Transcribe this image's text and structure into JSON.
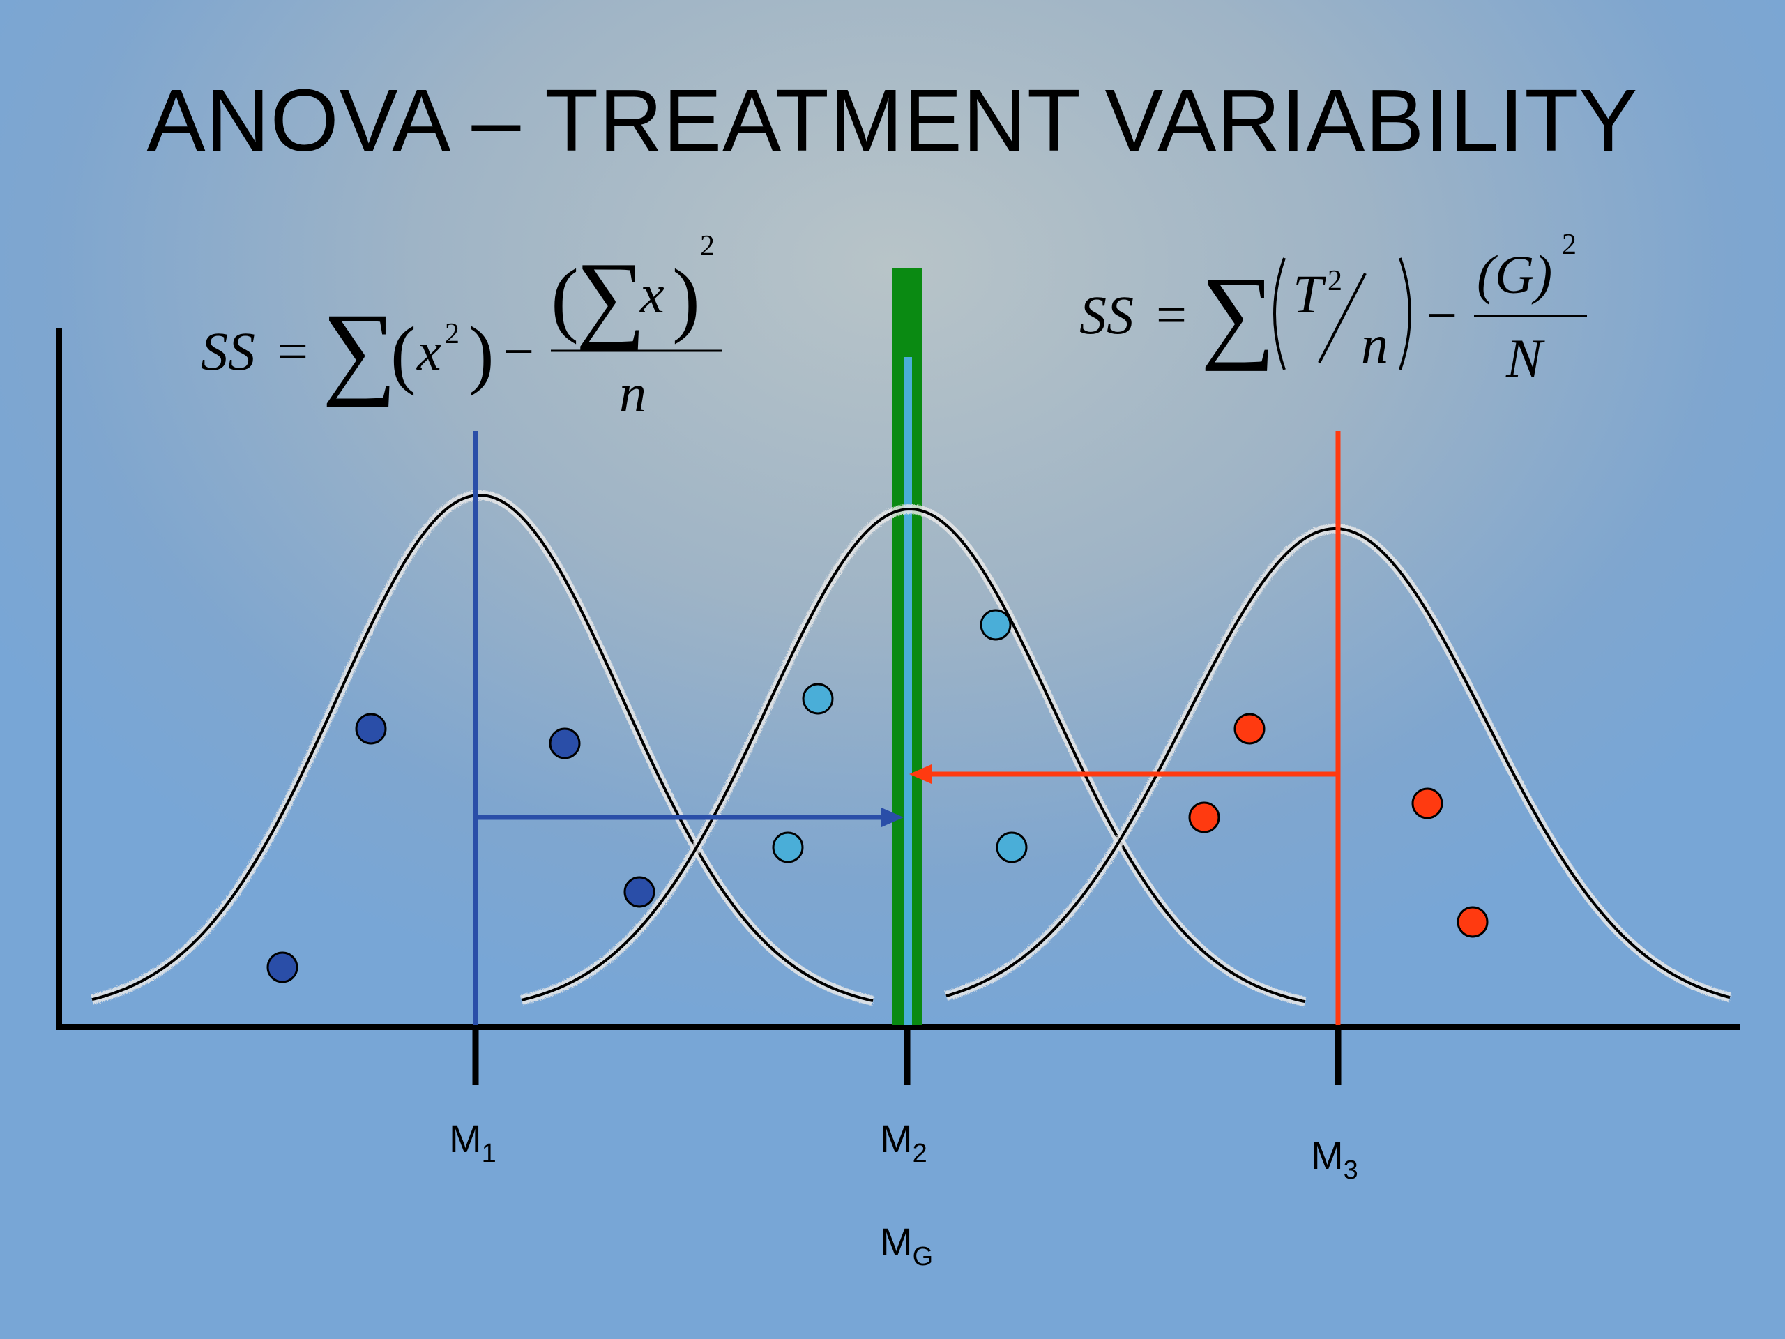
{
  "slide": {
    "title": "ANOVA – TREATMENT VARIABILITY"
  },
  "formulas": {
    "left": {
      "ss": "SS",
      "equals": "=",
      "sigma": "∑",
      "lparen": "(",
      "rparen": ")",
      "x": "x",
      "exp": "2",
      "minus": "−",
      "numerator_sigma": "∑",
      "numerator_x": "x",
      "numerator_exp": "2",
      "denominator": "n"
    },
    "right": {
      "ss": "SS",
      "equals": "=",
      "sigma": "∑",
      "T": "T",
      "t_exp": "2",
      "slash": "⁄",
      "n": "n",
      "minus": "−",
      "G": "(G)",
      "g_exp": "2",
      "N": "N"
    }
  },
  "labels": {
    "m1": {
      "base": "M",
      "sub": "1"
    },
    "m2": {
      "base": "M",
      "sub": "2"
    },
    "m3": {
      "base": "M",
      "sub": "3"
    },
    "mg": {
      "base": "M",
      "sub": "G"
    }
  },
  "colors": {
    "group1": "#2a4ea8",
    "group2": "#4aaed8",
    "group3": "#ff3a10",
    "grand_mean": "#0a8a12",
    "axis": "#000000"
  }
}
